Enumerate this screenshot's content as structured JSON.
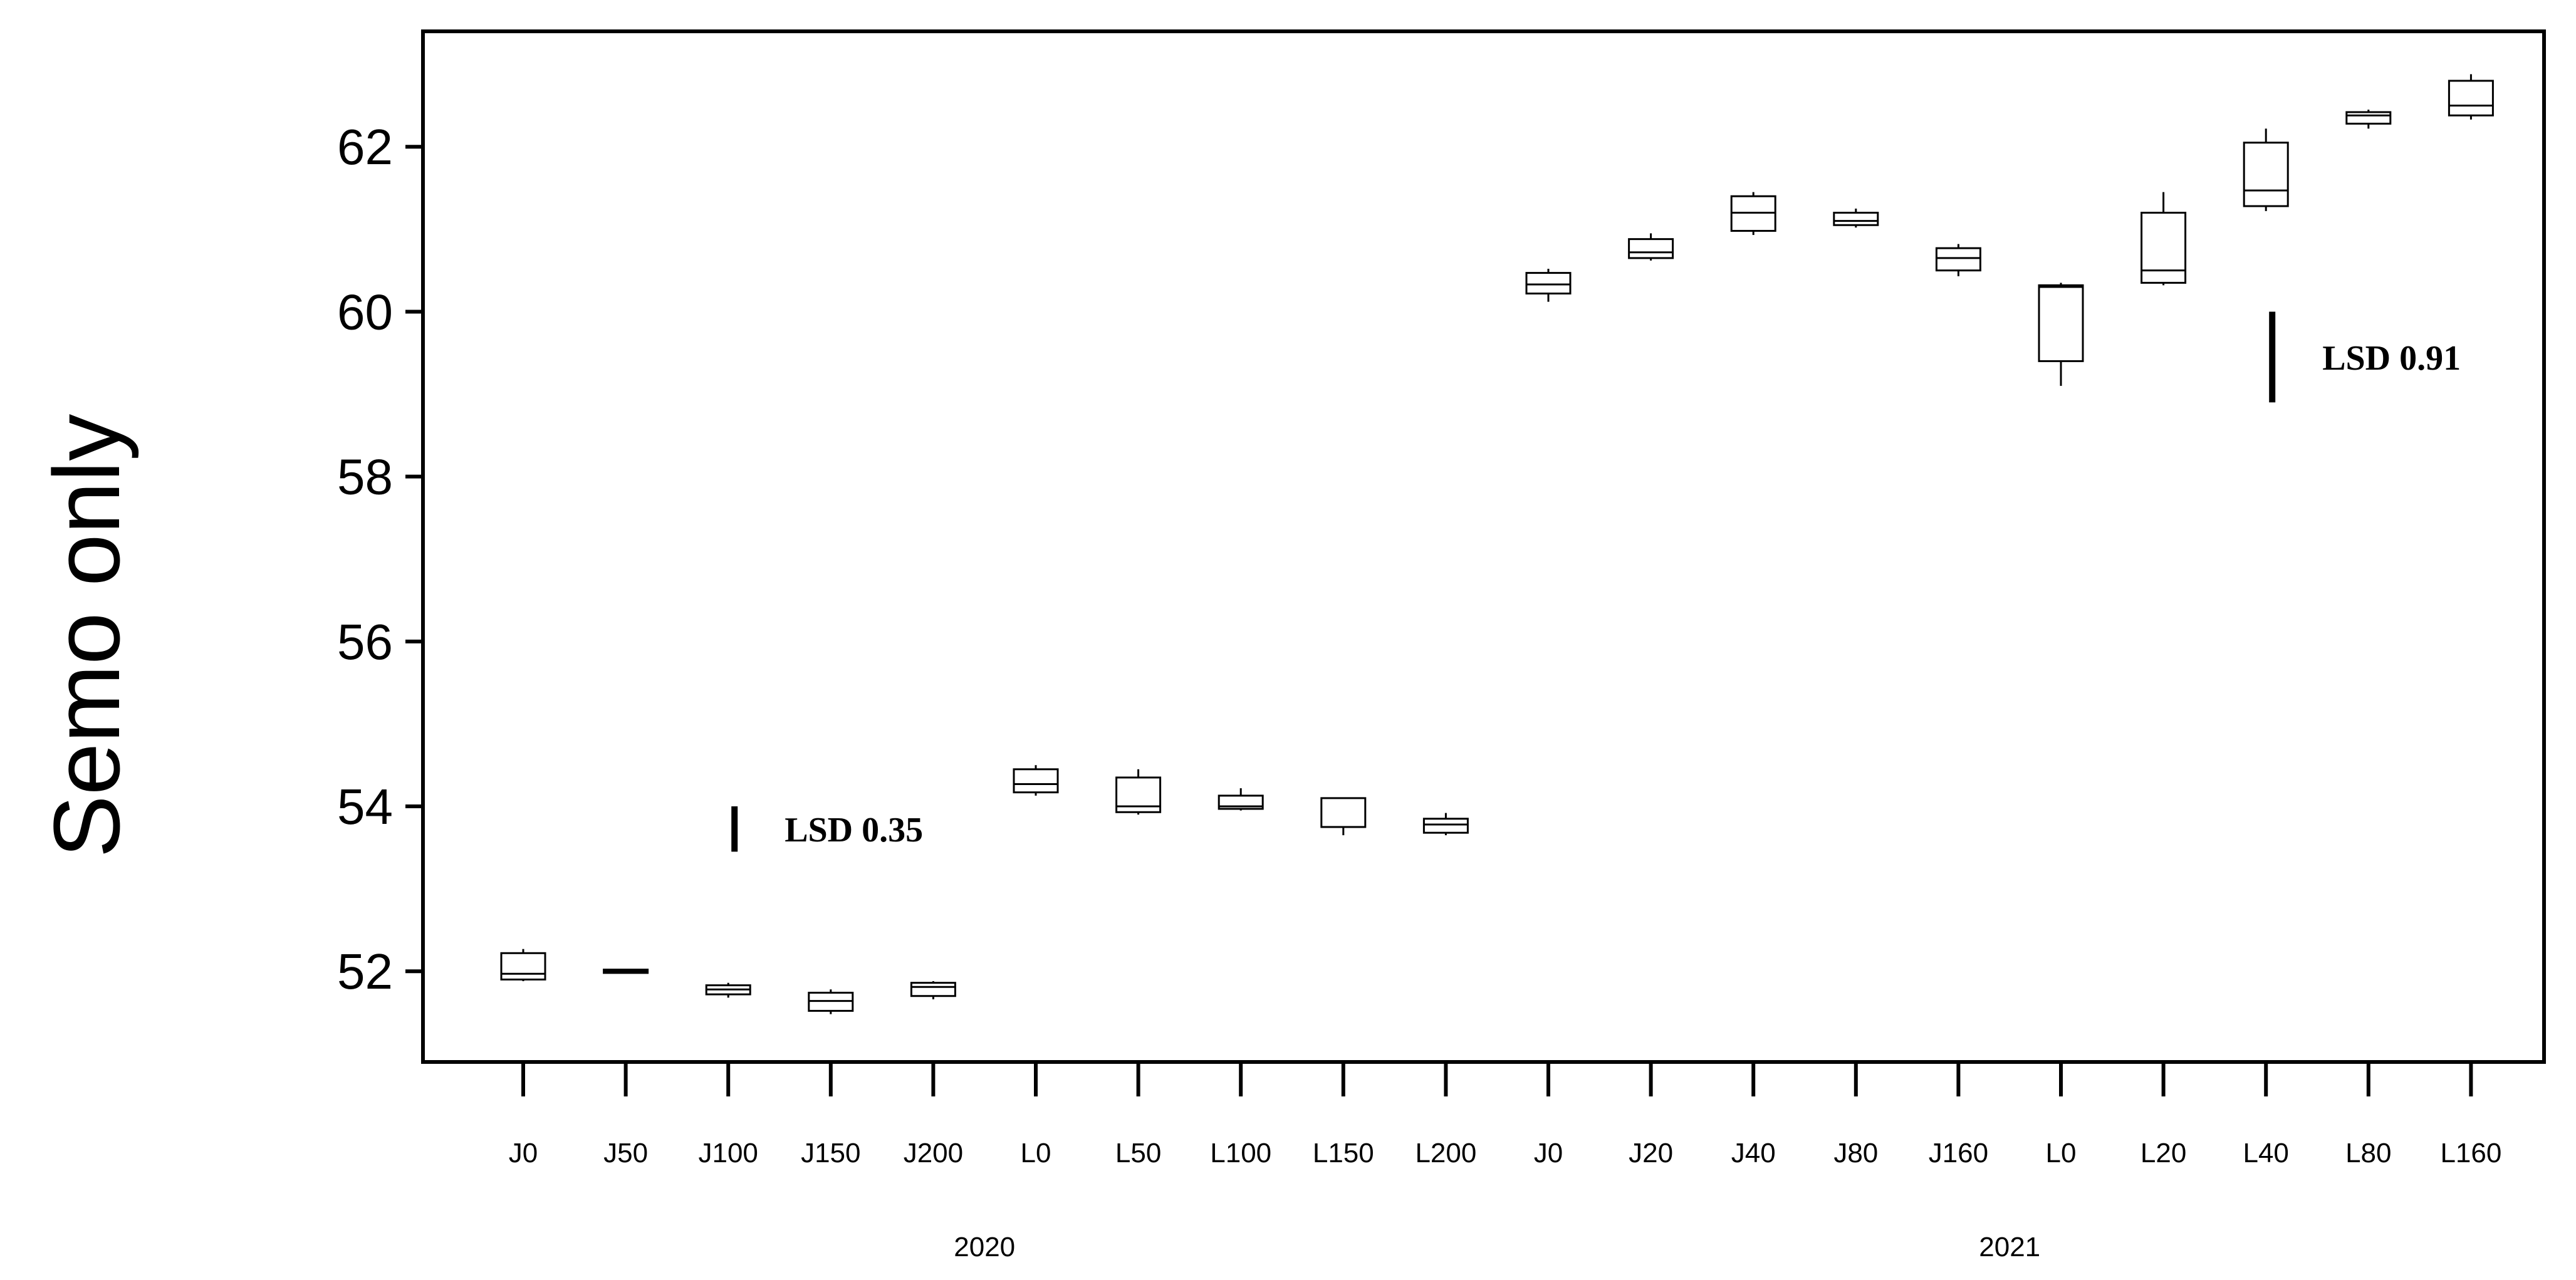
{
  "chart_data": {
    "type": "box",
    "ylabel": "Semo only",
    "xlabel": "",
    "ylim": [
      50.9,
      63.4
    ],
    "yticks": [
      52,
      54,
      56,
      58,
      60,
      62
    ],
    "grid": false,
    "categories": [
      "J0",
      "J50",
      "J100",
      "J150",
      "J200",
      "L0",
      "L50",
      "L100",
      "L150",
      "L200",
      "J0",
      "J20",
      "J40",
      "J80",
      "J160",
      "L0",
      "L20",
      "L40",
      "L80",
      "L160"
    ],
    "groups": [
      {
        "label": "2020",
        "start": 0,
        "end": 9
      },
      {
        "label": "2021",
        "start": 10,
        "end": 19
      }
    ],
    "boxes": [
      {
        "min": 51.88,
        "q1": 51.9,
        "median": 51.97,
        "q3": 52.22,
        "max": 52.27
      },
      {
        "min": 51.98,
        "q1": 51.98,
        "median": 52.0,
        "q3": 52.02,
        "max": 52.02
      },
      {
        "min": 51.68,
        "q1": 51.72,
        "median": 51.78,
        "q3": 51.83,
        "max": 51.86
      },
      {
        "min": 51.48,
        "q1": 51.52,
        "median": 51.64,
        "q3": 51.74,
        "max": 51.78
      },
      {
        "min": 51.66,
        "q1": 51.7,
        "median": 51.81,
        "q3": 51.86,
        "max": 51.88
      },
      {
        "min": 54.13,
        "q1": 54.17,
        "median": 54.27,
        "q3": 54.45,
        "max": 54.5
      },
      {
        "min": 53.9,
        "q1": 53.93,
        "median": 54.0,
        "q3": 54.35,
        "max": 54.45
      },
      {
        "min": 53.95,
        "q1": 53.97,
        "median": 54.0,
        "q3": 54.13,
        "max": 54.22
      },
      {
        "min": 53.65,
        "q1": 53.75,
        "median": 53.75,
        "q3": 54.1,
        "max": 54.1
      },
      {
        "min": 53.65,
        "q1": 53.68,
        "median": 53.78,
        "q3": 53.85,
        "max": 53.92
      },
      {
        "min": 60.12,
        "q1": 60.22,
        "median": 60.33,
        "q3": 60.47,
        "max": 60.52
      },
      {
        "min": 60.62,
        "q1": 60.65,
        "median": 60.72,
        "q3": 60.88,
        "max": 60.95
      },
      {
        "min": 60.93,
        "q1": 60.98,
        "median": 61.2,
        "q3": 61.4,
        "max": 61.45
      },
      {
        "min": 61.02,
        "q1": 61.05,
        "median": 61.1,
        "q3": 61.2,
        "max": 61.25
      },
      {
        "min": 60.43,
        "q1": 60.5,
        "median": 60.65,
        "q3": 60.77,
        "max": 60.82
      },
      {
        "min": 59.1,
        "q1": 59.4,
        "median": 60.3,
        "q3": 60.32,
        "max": 60.35
      },
      {
        "min": 60.32,
        "q1": 60.35,
        "median": 60.5,
        "q3": 61.2,
        "max": 61.45
      },
      {
        "min": 61.22,
        "q1": 61.28,
        "median": 61.47,
        "q3": 62.05,
        "max": 62.22
      },
      {
        "min": 62.22,
        "q1": 62.28,
        "median": 62.38,
        "q3": 62.42,
        "max": 62.45
      },
      {
        "min": 62.33,
        "q1": 62.38,
        "median": 62.5,
        "q3": 62.8,
        "max": 62.88
      }
    ],
    "lsd": [
      {
        "label": "LSD 0.35",
        "value": 0.35,
        "y_low": 53.45,
        "y_high": 54.0,
        "after_category": 2
      },
      {
        "label": "LSD 0.91",
        "value": 0.91,
        "y_low": 58.9,
        "y_high": 60.0,
        "after_category": 17
      }
    ]
  }
}
